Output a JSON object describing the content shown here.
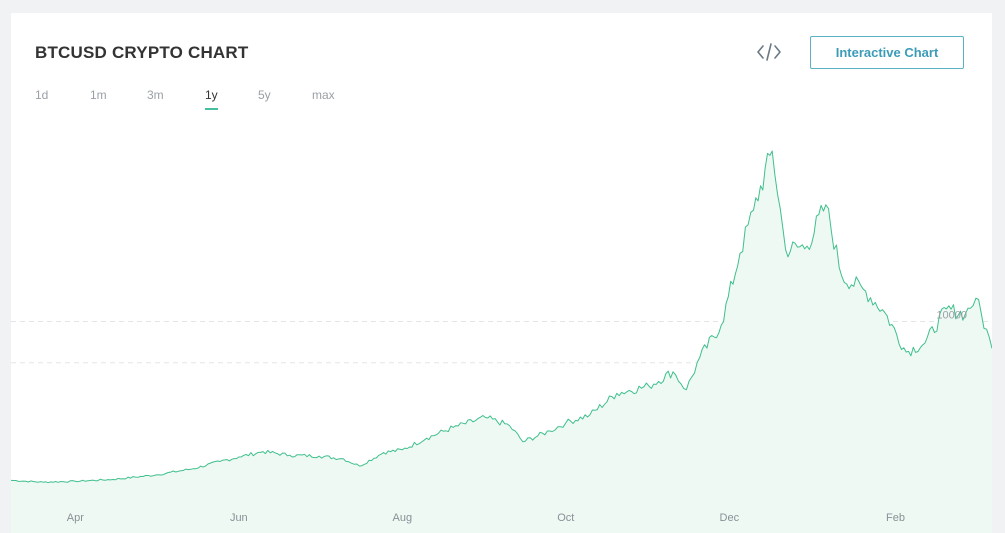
{
  "header": {
    "title": "BTCUSD CRYPTO CHART",
    "embed_icon": "code-icon",
    "interactive_label": "Interactive Chart"
  },
  "ranges": {
    "items": [
      "1d",
      "1m",
      "3m",
      "1y",
      "5y",
      "max"
    ],
    "active": "1y"
  },
  "colors": {
    "line": "#3fbf8c",
    "fill": "#eef9f4",
    "grid": "#e3e6e8",
    "accent": "#45bfa0"
  },
  "chart_data": {
    "type": "area",
    "title": "",
    "xlabel": "",
    "ylabel": "",
    "x_ticks": [
      {
        "label": "Apr",
        "date": "2017-04-01"
      },
      {
        "label": "Jun",
        "date": "2017-06-01"
      },
      {
        "label": "Aug",
        "date": "2017-08-01"
      },
      {
        "label": "Oct",
        "date": "2017-10-01"
      },
      {
        "label": "Dec",
        "date": "2017-12-01"
      },
      {
        "label": "Feb",
        "date": "2018-02-01"
      }
    ],
    "y_ticks": [
      10000
    ],
    "y_tick_labels": [
      "10000"
    ],
    "ylim": [
      0,
      20500
    ],
    "xlim": [
      "2017-03-08",
      "2018-03-09"
    ],
    "grid": true,
    "series": [
      {
        "x": [
          "2017-03-08",
          "2017-03-20",
          "2017-04-01",
          "2017-04-15",
          "2017-05-01",
          "2017-05-15",
          "2017-05-25",
          "2017-06-01",
          "2017-06-10",
          "2017-06-20",
          "2017-07-01",
          "2017-07-10",
          "2017-07-16",
          "2017-07-25",
          "2017-08-01",
          "2017-08-10",
          "2017-08-20",
          "2017-09-01",
          "2017-09-10",
          "2017-09-15",
          "2017-09-25",
          "2017-10-01",
          "2017-10-10",
          "2017-10-20",
          "2017-11-01",
          "2017-11-10",
          "2017-11-15",
          "2017-11-20",
          "2017-11-28",
          "2017-12-05",
          "2017-12-10",
          "2017-12-17",
          "2017-12-22",
          "2017-12-30",
          "2018-01-06",
          "2018-01-12",
          "2018-01-20",
          "2018-01-28",
          "2018-02-05",
          "2018-02-12",
          "2018-02-20",
          "2018-02-27",
          "2018-03-03",
          "2018-03-09"
        ],
        "y": [
          1150,
          1050,
          1100,
          1200,
          1450,
          1800,
          2200,
          2450,
          2750,
          2550,
          2500,
          2350,
          1950,
          2700,
          2850,
          3500,
          4100,
          4650,
          4200,
          3300,
          3900,
          4350,
          4800,
          6000,
          6400,
          7200,
          6200,
          8000,
          9800,
          13800,
          16200,
          19500,
          14000,
          14200,
          16500,
          12500,
          11800,
          10500,
          8300,
          8800,
          10700,
          10400,
          11300,
          8500
        ]
      }
    ]
  }
}
